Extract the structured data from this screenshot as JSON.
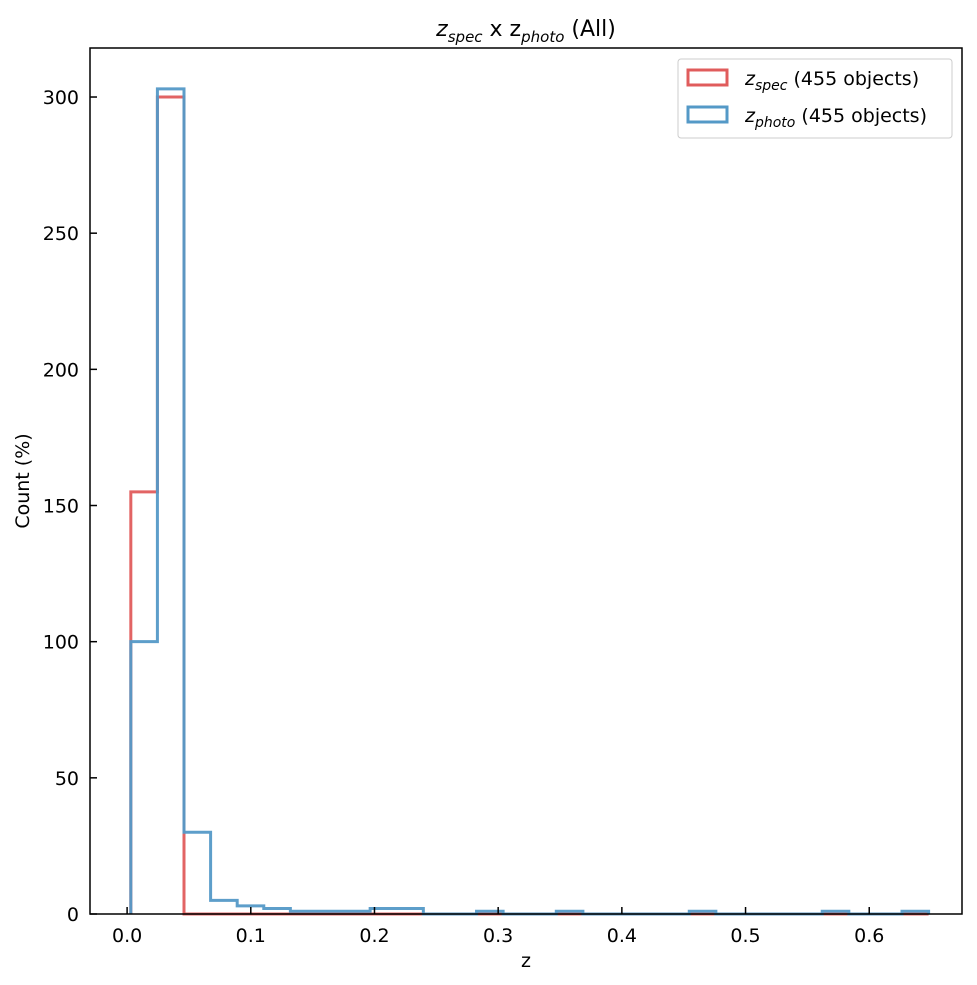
{
  "chart_data": {
    "type": "histogram",
    "title": {
      "prefix": "z",
      "prefix_sub": "spec",
      "mid": " x z",
      "mid_sub": "photo",
      "suffix": " (All)"
    },
    "xlabel": "z",
    "ylabel": "Count (%)",
    "xlim": [
      -0.03,
      0.675
    ],
    "ylim": [
      0,
      318
    ],
    "xticks": [
      0.0,
      0.1,
      0.2,
      0.3,
      0.4,
      0.5,
      0.6
    ],
    "xtick_labels": [
      "0.0",
      "0.1",
      "0.2",
      "0.3",
      "0.4",
      "0.5",
      "0.6"
    ],
    "yticks": [
      0,
      50,
      100,
      150,
      200,
      250,
      300
    ],
    "ytick_labels": [
      "0",
      "50",
      "100",
      "150",
      "200",
      "250",
      "300"
    ],
    "legend_position": "top-right",
    "bin_edges": [
      0.003,
      0.0245,
      0.046,
      0.0675,
      0.089,
      0.1105,
      0.132,
      0.1535,
      0.175,
      0.1965,
      0.218,
      0.2395,
      0.261,
      0.2825,
      0.304,
      0.3255,
      0.347,
      0.3685,
      0.39,
      0.4115,
      0.433,
      0.4545,
      0.476,
      0.4975,
      0.519,
      0.5405,
      0.562,
      0.5835,
      0.605,
      0.6265,
      0.648
    ],
    "series": [
      {
        "name": "z",
        "name_sub": "spec",
        "name_suffix": " (455 objects)",
        "color": "#e05c5c",
        "counts": [
          155,
          300,
          0,
          0,
          0,
          0,
          0,
          0,
          0,
          0,
          0,
          0,
          0,
          0,
          0,
          0,
          0,
          0,
          0,
          0,
          0,
          0,
          0,
          0,
          0,
          0,
          0,
          0,
          0,
          0
        ]
      },
      {
        "name": "z",
        "name_sub": "photo",
        "name_suffix": " (455 objects)",
        "color": "#5499c7",
        "counts": [
          100,
          303,
          30,
          5,
          3,
          2,
          1,
          1,
          1,
          2,
          2,
          0,
          0,
          1,
          0,
          0,
          1,
          0,
          0,
          0,
          0,
          1,
          0,
          0,
          0,
          0,
          1,
          0,
          0,
          1
        ]
      }
    ]
  }
}
